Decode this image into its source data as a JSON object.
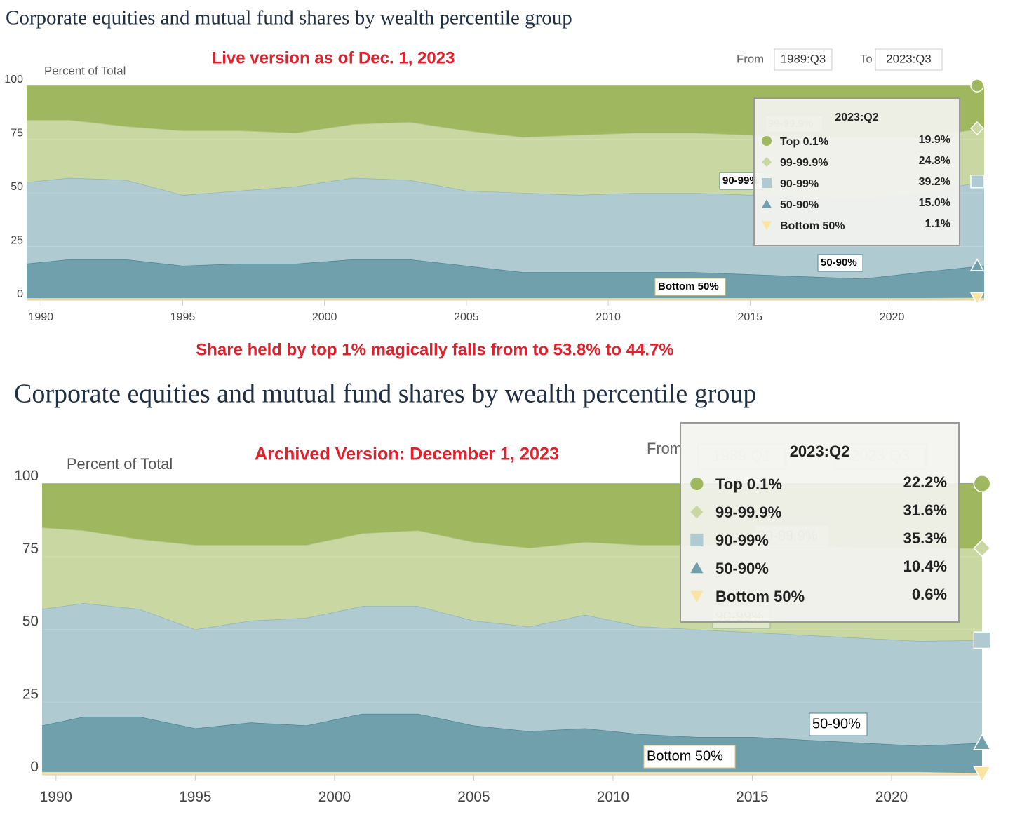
{
  "caption": "Share held by top 1% magically falls from to 53.8% to 44.7%",
  "chart_data": [
    {
      "type": "stacked_area",
      "title": "Corporate equities and mutual fund shares by wealth percentile group",
      "annotation": "Live version as of Dec. 1, 2023",
      "y_label": "Percent of Total",
      "range_from_label": "From",
      "range_from": "1989:Q3",
      "range_to_label": "To",
      "range_to": "2023:Q3",
      "x": [
        1989.5,
        1991,
        1993,
        1995,
        1997,
        1999,
        2001,
        2003,
        2005,
        2007,
        2009,
        2011,
        2013,
        2015,
        2017,
        2019,
        2021,
        2023.25
      ],
      "xlim": [
        1989.5,
        2023.25
      ],
      "xticks": [
        1990,
        1995,
        2000,
        2005,
        2010,
        2015,
        2020
      ],
      "ylim": [
        0,
        100
      ],
      "yticks": [
        0,
        25,
        50,
        75,
        100
      ],
      "series": [
        {
          "name": "Top 0.1%",
          "color": "#9fb860",
          "values": [
            16,
            16,
            19,
            21,
            21,
            22,
            18,
            17,
            21,
            24,
            23,
            22,
            22,
            23,
            24,
            24,
            24,
            19.9
          ]
        },
        {
          "name": "99-99.9%",
          "color": "#c9d7a2",
          "values": [
            29,
            27,
            25,
            30,
            28,
            25,
            25,
            27,
            28,
            26,
            28,
            28,
            28,
            28,
            28,
            29,
            26,
            24.8
          ]
        },
        {
          "name": "90-99%",
          "color": "#afcad1",
          "values": [
            38,
            38,
            37,
            33,
            34,
            36,
            38,
            37,
            35,
            37,
            36,
            37,
            37,
            37,
            37,
            37,
            37,
            39.2
          ]
        },
        {
          "name": "50-90%",
          "color": "#6fa0ab",
          "values": [
            16,
            18,
            18,
            15,
            16,
            16,
            18,
            18,
            15,
            12,
            12,
            12,
            12,
            11,
            10,
            9,
            12,
            15.0
          ]
        },
        {
          "name": "Bottom 50%",
          "color": "#fbe3a0",
          "values": [
            1,
            1,
            1,
            1,
            1,
            1,
            1,
            1,
            1,
            1,
            1,
            1,
            1,
            1,
            1,
            1,
            1,
            1.1
          ]
        }
      ],
      "tooltip": {
        "title": "2023:Q2",
        "value_labels": [
          "19.9%",
          "24.8%",
          "39.2%",
          "15.0%",
          "1.1%"
        ]
      }
    },
    {
      "type": "stacked_area",
      "title": "Corporate equities and mutual fund shares by wealth percentile group",
      "annotation": "Archived Version: December 1, 2023",
      "y_label": "Percent of Total",
      "range_from_label": "From",
      "range_from": "1989:Q1",
      "range_to": "2023:Q3",
      "x": [
        1989.5,
        1991,
        1993,
        1995,
        1997,
        1999,
        2001,
        2003,
        2005,
        2007,
        2009,
        2011,
        2013,
        2015,
        2017,
        2019,
        2021,
        2023.25
      ],
      "xlim": [
        1989.5,
        2023.25
      ],
      "xticks": [
        1990,
        1995,
        2000,
        2005,
        2010,
        2015,
        2020
      ],
      "ylim": [
        0,
        100
      ],
      "yticks": [
        0,
        25,
        50,
        75,
        100
      ],
      "series": [
        {
          "name": "Top 0.1%",
          "color": "#9fb860",
          "values": [
            15,
            16,
            19,
            21,
            21,
            21,
            17,
            16,
            20,
            22,
            20,
            21,
            21,
            21,
            21,
            22,
            22,
            22.2
          ]
        },
        {
          "name": "99-99.9%",
          "color": "#c9d7a2",
          "values": [
            28,
            25,
            24,
            29,
            26,
            25,
            25,
            26,
            27,
            27,
            25,
            28,
            29,
            30,
            31,
            31,
            32,
            31.6
          ]
        },
        {
          "name": "90-99%",
          "color": "#afcad1",
          "values": [
            40,
            39,
            37,
            34,
            35,
            37,
            37,
            37,
            36,
            36,
            39,
            37,
            37,
            36,
            36,
            36,
            36,
            35.3
          ]
        },
        {
          "name": "50-90%",
          "color": "#6fa0ab",
          "values": [
            16,
            19,
            19,
            15,
            17,
            16,
            20,
            20,
            16,
            14,
            15,
            13,
            12,
            12,
            11,
            10,
            9,
            10.4
          ]
        },
        {
          "name": "Bottom 50%",
          "color": "#fbe3a0",
          "values": [
            1,
            1,
            1,
            1,
            1,
            1,
            1,
            1,
            1,
            1,
            1,
            1,
            1,
            1,
            1,
            1,
            1,
            0.6
          ]
        }
      ],
      "tooltip": {
        "title": "2023:Q2",
        "value_labels": [
          "22.2%",
          "31.6%",
          "35.3%",
          "10.4%",
          "0.6%"
        ]
      }
    }
  ]
}
